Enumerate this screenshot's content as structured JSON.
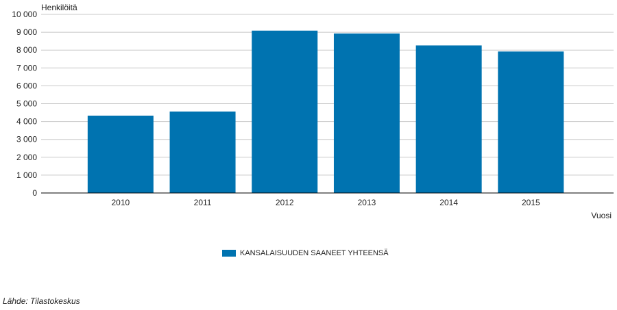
{
  "chart_data": {
    "type": "bar",
    "ylabel": "Henkilöitä",
    "xlabel": "Vuosi",
    "categories": [
      "2010",
      "2011",
      "2012",
      "2013",
      "2014",
      "2015"
    ],
    "series": [
      {
        "name": "KANSALAISUUDEN SAANEET YHTEENSÄ",
        "values": [
          4330,
          4560,
          9090,
          8930,
          8260,
          7920
        ]
      }
    ],
    "ylim": [
      0,
      10000
    ],
    "yticks": [
      0,
      1000,
      2000,
      3000,
      4000,
      5000,
      6000,
      7000,
      8000,
      9000,
      10000
    ],
    "ytick_labels": [
      "0",
      "1 000",
      "2 000",
      "3 000",
      "4 000",
      "5 000",
      "6 000",
      "7 000",
      "8 000",
      "9 000",
      "10 000"
    ],
    "grid": true,
    "legend_position": "bottom-center",
    "bar_color": "#0073b0",
    "grid_color": "#c8c8c8"
  },
  "source_text": "Lähde: Tilastokeskus"
}
